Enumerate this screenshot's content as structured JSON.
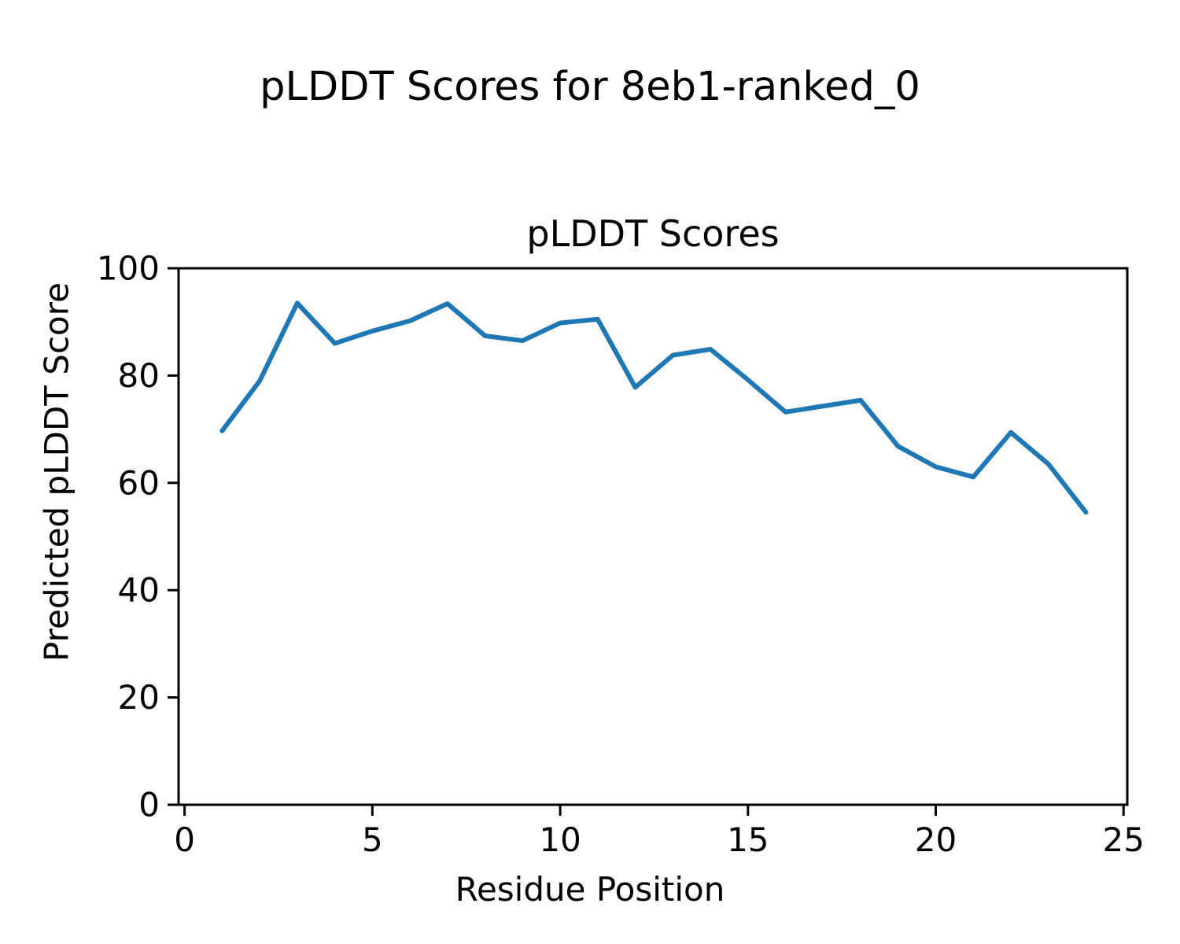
{
  "figure": {
    "suptitle": "pLDDT Scores for 8eb1-ranked_0"
  },
  "chart_data": {
    "type": "line",
    "title": "pLDDT Scores",
    "xlabel": "Residue Position",
    "ylabel": "Predicted pLDDT Score",
    "x": [
      1,
      2,
      3,
      4,
      5,
      6,
      7,
      8,
      9,
      10,
      11,
      12,
      13,
      14,
      15,
      16,
      17,
      18,
      19,
      20,
      21,
      22,
      23,
      24
    ],
    "series": [
      {
        "name": "pLDDT",
        "values": [
          69.7,
          79.0,
          93.5,
          86.0,
          88.3,
          90.2,
          93.4,
          87.4,
          86.5,
          89.8,
          90.5,
          77.8,
          83.8,
          84.9,
          79.2,
          73.2,
          74.3,
          75.4,
          66.8,
          63.0,
          61.1,
          69.4,
          63.5,
          54.5
        ]
      }
    ],
    "xlim": [
      -0.16,
      25.1
    ],
    "ylim": [
      0,
      100
    ],
    "x_ticks": [
      0,
      5,
      10,
      15,
      20,
      25
    ],
    "y_ticks": [
      0,
      20,
      40,
      60,
      80,
      100
    ],
    "grid": false,
    "legend": "none",
    "line_color": "#1f77b4",
    "spine_color": "#000000",
    "text_color": "#000000",
    "background_color": "#ffffff"
  }
}
